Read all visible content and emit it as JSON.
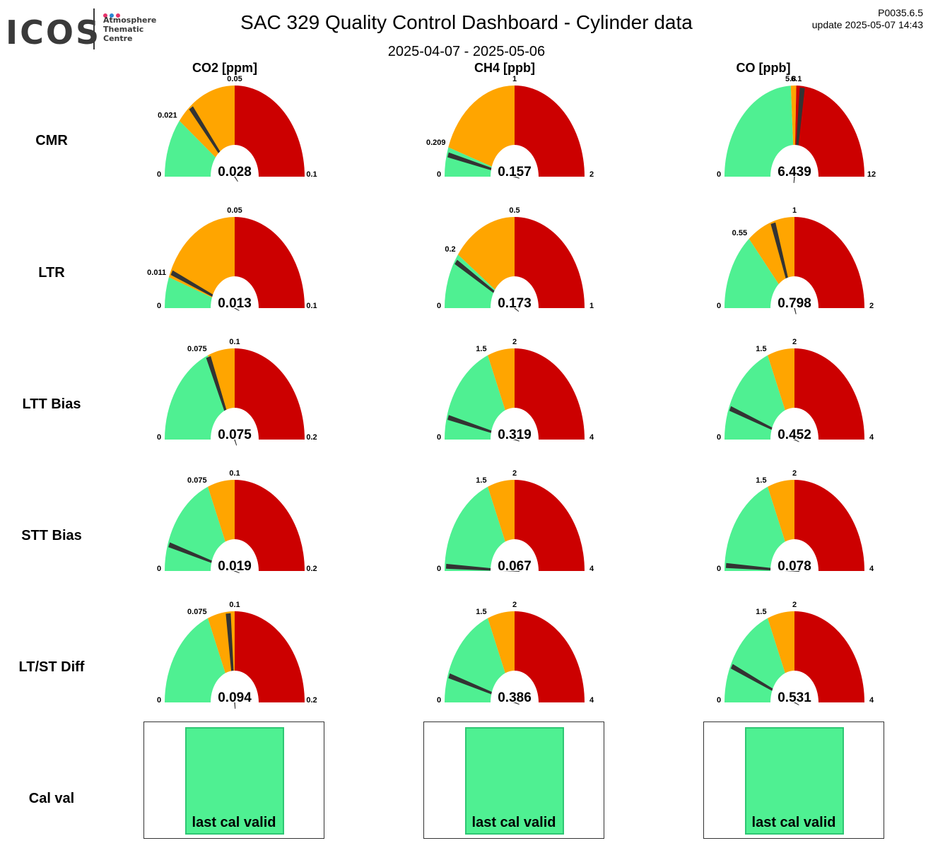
{
  "logo": {
    "text": "ICOS",
    "subtitle": "Atmosphere\nThematic\nCentre",
    "dot_colors": [
      "#e6336b",
      "#2a86d4",
      "#e6336b"
    ]
  },
  "header": {
    "title": "SAC 329 Quality Control Dashboard - Cylinder data",
    "date_range": "2025-04-07 - 2025-05-06",
    "version": "P0035.6.5",
    "update": "update  2025-05-07 14:43"
  },
  "colors": {
    "green": "#4ff092",
    "orange": "#ffa500",
    "red": "#cc0000",
    "needle": "#333333"
  },
  "columns": [
    "CO2 [ppm]",
    "CH4 [ppb]",
    "CO [ppb]"
  ],
  "rows": [
    "CMR",
    "LTR",
    "LTT Bias",
    "STT Bias",
    "LT/ST Diff",
    "Cal val"
  ],
  "chart_data": {
    "type": "gauge",
    "gauges": [
      {
        "row": "CMR",
        "col": "CO2 [ppm]",
        "min": "0",
        "max": "0.1",
        "green_max": 0.021,
        "green_label": "0.021",
        "orange_max": 0.05,
        "orange_label": "0.05",
        "value": 0.028,
        "value_label": "0.028"
      },
      {
        "row": "CMR",
        "col": "CH4 [ppb]",
        "min": "0",
        "max": "2",
        "green_max": 0.209,
        "green_label": "0.209",
        "orange_max": 1,
        "orange_label": "1",
        "value": 0.157,
        "value_label": "0.157"
      },
      {
        "row": "CMR",
        "col": "CO [ppb]",
        "min": "0",
        "max": "12",
        "green_max": 5.8,
        "green_label": "5.8",
        "orange_max": 6.1,
        "orange_label": "6.1",
        "value": 6.439,
        "value_label": "6.439"
      },
      {
        "row": "LTR",
        "col": "CO2 [ppm]",
        "min": "0",
        "max": "0.1",
        "green_max": 0.011,
        "green_label": "0.011",
        "orange_max": 0.05,
        "orange_label": "0.05",
        "value": 0.013,
        "value_label": "0.013"
      },
      {
        "row": "LTR",
        "col": "CH4 [ppb]",
        "min": "0",
        "max": "1",
        "green_max": 0.2,
        "green_label": "0.2",
        "orange_max": 0.5,
        "orange_label": "0.5",
        "value": 0.173,
        "value_label": "0.173"
      },
      {
        "row": "LTR",
        "col": "CO [ppb]",
        "min": "0",
        "max": "2",
        "green_max": 0.55,
        "green_label": "0.55",
        "orange_max": 1,
        "orange_label": "1",
        "value": 0.798,
        "value_label": "0.798"
      },
      {
        "row": "LTT Bias",
        "col": "CO2 [ppm]",
        "min": "0",
        "max": "0.2",
        "green_max": 0.075,
        "green_label": "0.075",
        "orange_max": 0.1,
        "orange_label": "0.1",
        "value": 0.075,
        "value_label": "0.075"
      },
      {
        "row": "LTT Bias",
        "col": "CH4 [ppb]",
        "min": "0",
        "max": "4",
        "green_max": 1.5,
        "green_label": "1.5",
        "orange_max": 2,
        "orange_label": "2",
        "value": 0.319,
        "value_label": "0.319"
      },
      {
        "row": "LTT Bias",
        "col": "CO [ppb]",
        "min": "0",
        "max": "4",
        "green_max": 1.5,
        "green_label": "1.5",
        "orange_max": 2,
        "orange_label": "2",
        "value": 0.452,
        "value_label": "0.452"
      },
      {
        "row": "STT Bias",
        "col": "CO2 [ppm]",
        "min": "0",
        "max": "0.2",
        "green_max": 0.075,
        "green_label": "0.075",
        "orange_max": 0.1,
        "orange_label": "0.1",
        "value": 0.019,
        "value_label": "0.019"
      },
      {
        "row": "STT Bias",
        "col": "CH4 [ppb]",
        "min": "0",
        "max": "4",
        "green_max": 1.5,
        "green_label": "1.5",
        "orange_max": 2,
        "orange_label": "2",
        "value": 0.067,
        "value_label": "0.067"
      },
      {
        "row": "STT Bias",
        "col": "CO [ppb]",
        "min": "0",
        "max": "4",
        "green_max": 1.5,
        "green_label": "1.5",
        "orange_max": 2,
        "orange_label": "2",
        "value": 0.078,
        "value_label": "0.078"
      },
      {
        "row": "LT/ST Diff",
        "col": "CO2 [ppm]",
        "min": "0",
        "max": "0.2",
        "green_max": 0.075,
        "green_label": "0.075",
        "orange_max": 0.1,
        "orange_label": "0.1",
        "value": 0.094,
        "value_label": "0.094"
      },
      {
        "row": "LT/ST Diff",
        "col": "CH4 [ppb]",
        "min": "0",
        "max": "4",
        "green_max": 1.5,
        "green_label": "1.5",
        "orange_max": 2,
        "orange_label": "2",
        "value": 0.386,
        "value_label": "0.386"
      },
      {
        "row": "LT/ST Diff",
        "col": "CO [ppb]",
        "min": "0",
        "max": "4",
        "green_max": 1.5,
        "green_label": "1.5",
        "orange_max": 2,
        "orange_label": "2",
        "value": 0.531,
        "value_label": "0.531"
      }
    ],
    "cal_val": [
      {
        "col": "CO2 [ppm]",
        "status": "last cal valid",
        "color": "#4ff092"
      },
      {
        "col": "CH4 [ppb]",
        "status": "last cal valid",
        "color": "#4ff092"
      },
      {
        "col": "CO [ppb]",
        "status": "last cal valid",
        "color": "#4ff092"
      }
    ]
  }
}
